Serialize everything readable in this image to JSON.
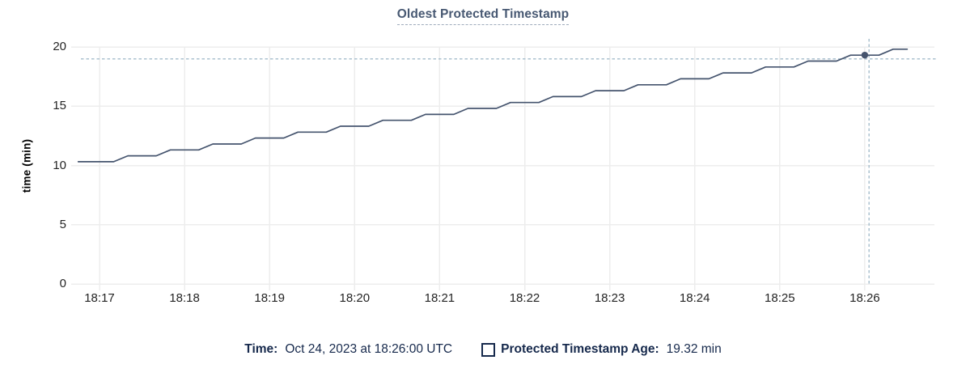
{
  "chart_data": {
    "type": "line",
    "title": "Oldest Protected Timestamp",
    "xlabel": "",
    "ylabel": "time (min)",
    "x_ticks": [
      "18:17",
      "18:18",
      "18:19",
      "18:20",
      "18:21",
      "18:22",
      "18:23",
      "18:24",
      "18:25",
      "18:26"
    ],
    "y_ticks": [
      0,
      5,
      10,
      15,
      20
    ],
    "ylim": [
      0,
      20
    ],
    "grid": true,
    "legend_position": "bottom",
    "series": [
      {
        "name": "Protected Timestamp Age",
        "unit": "min",
        "points_format": "[seconds_after_18:17, value_min]",
        "points": [
          [
            -15,
            10.32
          ],
          [
            -10,
            10.32
          ],
          [
            0,
            10.32
          ],
          [
            10,
            10.32
          ],
          [
            20,
            10.82
          ],
          [
            30,
            10.82
          ],
          [
            40,
            10.82
          ],
          [
            50,
            11.32
          ],
          [
            60,
            11.32
          ],
          [
            70,
            11.32
          ],
          [
            80,
            11.82
          ],
          [
            90,
            11.82
          ],
          [
            100,
            11.82
          ],
          [
            110,
            12.32
          ],
          [
            120,
            12.32
          ],
          [
            130,
            12.32
          ],
          [
            140,
            12.82
          ],
          [
            150,
            12.82
          ],
          [
            160,
            12.82
          ],
          [
            170,
            13.32
          ],
          [
            180,
            13.32
          ],
          [
            190,
            13.32
          ],
          [
            200,
            13.82
          ],
          [
            210,
            13.82
          ],
          [
            220,
            13.82
          ],
          [
            230,
            14.32
          ],
          [
            240,
            14.32
          ],
          [
            250,
            14.32
          ],
          [
            260,
            14.82
          ],
          [
            270,
            14.82
          ],
          [
            280,
            14.82
          ],
          [
            290,
            15.32
          ],
          [
            300,
            15.32
          ],
          [
            310,
            15.32
          ],
          [
            320,
            15.82
          ],
          [
            330,
            15.82
          ],
          [
            340,
            15.82
          ],
          [
            350,
            16.32
          ],
          [
            360,
            16.32
          ],
          [
            370,
            16.32
          ],
          [
            380,
            16.82
          ],
          [
            390,
            16.82
          ],
          [
            400,
            16.82
          ],
          [
            410,
            17.32
          ],
          [
            420,
            17.32
          ],
          [
            430,
            17.32
          ],
          [
            440,
            17.82
          ],
          [
            450,
            17.82
          ],
          [
            460,
            17.82
          ],
          [
            470,
            18.32
          ],
          [
            480,
            18.32
          ],
          [
            490,
            18.32
          ],
          [
            500,
            18.82
          ],
          [
            510,
            18.82
          ],
          [
            520,
            18.82
          ],
          [
            530,
            19.32
          ],
          [
            540,
            19.32
          ],
          [
            550,
            19.32
          ],
          [
            560,
            19.82
          ],
          [
            570,
            19.82
          ]
        ]
      }
    ],
    "hover": {
      "time": "Oct 24, 2023 at 18:26:00 UTC",
      "point": {
        "t_seconds": 540,
        "value_min": 19.32
      },
      "crosshair_t_seconds": 543,
      "crosshair_value_min": 19.0
    }
  },
  "legend": {
    "time_label": "Time:",
    "time_value": "Oct 24, 2023 at 18:26:00 UTC",
    "series_label": "Protected Timestamp Age:",
    "series_value": "19.32 min"
  },
  "colors": {
    "line": "#45546e",
    "dot": "#45546e",
    "crosshair": "#a4bccb",
    "grid": "#ededed",
    "title": "#475872",
    "legend_text": "#16294c",
    "tick_text": "#242424"
  }
}
